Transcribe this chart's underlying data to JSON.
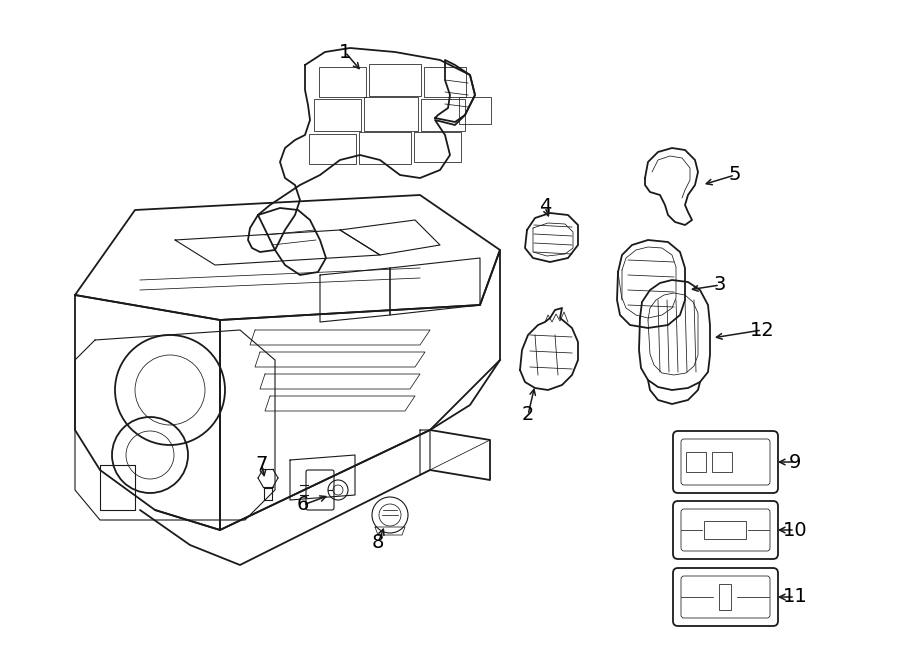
{
  "bg_color": "#ffffff",
  "line_color": "#1a1a1a",
  "label_color": "#000000",
  "figsize": [
    9.0,
    6.61
  ],
  "dpi": 100
}
